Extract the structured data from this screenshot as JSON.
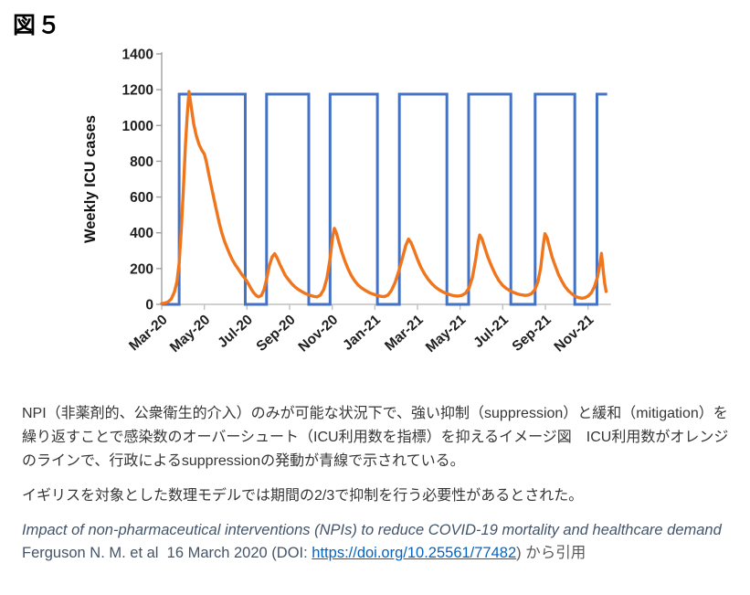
{
  "figure_label": "図５",
  "chart_data": {
    "type": "line",
    "title": "",
    "xlabel": "",
    "ylabel": "Weekly ICU cases",
    "ylim": [
      0,
      1400
    ],
    "y_tick_step": 200,
    "x_tick_labels": [
      "Mar-20",
      "May-20",
      "Jul-20",
      "Sep-20",
      "Nov-20",
      "Jan-21",
      "Mar-21",
      "May-21",
      "Jul-21",
      "Sep-21",
      "Nov-21"
    ],
    "x_tick_months": [
      0,
      2,
      4,
      6,
      8,
      10,
      12,
      14,
      16,
      18,
      20
    ],
    "plot_end_month": 20.9,
    "grid": false,
    "legend": "none",
    "y_axis_color": "#A0A0A0",
    "x_axis_color": "#C0C0C0",
    "tick_label_color": "#1F1F1F",
    "series": [
      {
        "name": "suppression-trigger",
        "description_visible": "行政によるsuppressionの発動（青線）",
        "color": "#4472C4",
        "width": 3,
        "type": "step",
        "on_level": 1175,
        "off_level": 0,
        "on_intervals_months": [
          [
            0.82,
            3.92
          ],
          [
            4.92,
            6.9
          ],
          [
            7.9,
            10.12
          ],
          [
            11.15,
            13.38
          ],
          [
            14.4,
            16.38
          ],
          [
            17.52,
            19.38
          ],
          [
            20.42,
            20.9
          ]
        ]
      },
      {
        "name": "weekly-icu-cases",
        "description_visible": "ICU利用数（オレンジのライン）",
        "color": "#F0761E",
        "width": 3.4,
        "type": "line",
        "points": [
          [
            0,
            4
          ],
          [
            0.15,
            7
          ],
          [
            0.3,
            14
          ],
          [
            0.45,
            30
          ],
          [
            0.6,
            70
          ],
          [
            0.72,
            130
          ],
          [
            0.82,
            230
          ],
          [
            0.92,
            420
          ],
          [
            1.02,
            650
          ],
          [
            1.12,
            900
          ],
          [
            1.2,
            1060
          ],
          [
            1.28,
            1190
          ],
          [
            1.38,
            1110
          ],
          [
            1.5,
            1010
          ],
          [
            1.62,
            945
          ],
          [
            1.75,
            895
          ],
          [
            1.88,
            862
          ],
          [
            2.0,
            840
          ],
          [
            2.1,
            795
          ],
          [
            2.2,
            735
          ],
          [
            2.32,
            665
          ],
          [
            2.45,
            590
          ],
          [
            2.58,
            520
          ],
          [
            2.7,
            455
          ],
          [
            2.82,
            400
          ],
          [
            2.95,
            352
          ],
          [
            3.08,
            312
          ],
          [
            3.2,
            278
          ],
          [
            3.32,
            248
          ],
          [
            3.45,
            222
          ],
          [
            3.58,
            200
          ],
          [
            3.7,
            178
          ],
          [
            3.82,
            158
          ],
          [
            3.95,
            138
          ],
          [
            4.08,
            112
          ],
          [
            4.2,
            86
          ],
          [
            4.32,
            64
          ],
          [
            4.45,
            48
          ],
          [
            4.55,
            42
          ],
          [
            4.68,
            50
          ],
          [
            4.8,
            82
          ],
          [
            4.92,
            140
          ],
          [
            5.05,
            215
          ],
          [
            5.18,
            265
          ],
          [
            5.3,
            283
          ],
          [
            5.42,
            258
          ],
          [
            5.55,
            222
          ],
          [
            5.68,
            190
          ],
          [
            5.8,
            162
          ],
          [
            5.95,
            138
          ],
          [
            6.1,
            116
          ],
          [
            6.25,
            98
          ],
          [
            6.4,
            84
          ],
          [
            6.55,
            73
          ],
          [
            6.7,
            63
          ],
          [
            6.85,
            55
          ],
          [
            7.0,
            49
          ],
          [
            7.15,
            44
          ],
          [
            7.3,
            42
          ],
          [
            7.45,
            52
          ],
          [
            7.6,
            82
          ],
          [
            7.75,
            145
          ],
          [
            7.9,
            255
          ],
          [
            8.02,
            375
          ],
          [
            8.1,
            425
          ],
          [
            8.2,
            398
          ],
          [
            8.32,
            345
          ],
          [
            8.45,
            292
          ],
          [
            8.6,
            240
          ],
          [
            8.75,
            196
          ],
          [
            8.9,
            160
          ],
          [
            9.05,
            132
          ],
          [
            9.22,
            108
          ],
          [
            9.4,
            90
          ],
          [
            9.58,
            76
          ],
          [
            9.75,
            65
          ],
          [
            9.92,
            57
          ],
          [
            10.1,
            50
          ],
          [
            10.28,
            45
          ],
          [
            10.45,
            43
          ],
          [
            10.62,
            52
          ],
          [
            10.78,
            78
          ],
          [
            10.95,
            122
          ],
          [
            11.12,
            185
          ],
          [
            11.3,
            262
          ],
          [
            11.45,
            330
          ],
          [
            11.58,
            365
          ],
          [
            11.7,
            345
          ],
          [
            11.85,
            300
          ],
          [
            12.0,
            252
          ],
          [
            12.15,
            210
          ],
          [
            12.32,
            172
          ],
          [
            12.5,
            140
          ],
          [
            12.68,
            115
          ],
          [
            12.85,
            96
          ],
          [
            13.02,
            81
          ],
          [
            13.2,
            69
          ],
          [
            13.38,
            60
          ],
          [
            13.55,
            53
          ],
          [
            13.72,
            48
          ],
          [
            13.9,
            46
          ],
          [
            14.08,
            50
          ],
          [
            14.25,
            62
          ],
          [
            14.42,
            92
          ],
          [
            14.58,
            152
          ],
          [
            14.72,
            245
          ],
          [
            14.85,
            350
          ],
          [
            14.92,
            388
          ],
          [
            15.02,
            368
          ],
          [
            15.15,
            320
          ],
          [
            15.3,
            265
          ],
          [
            15.48,
            212
          ],
          [
            15.65,
            168
          ],
          [
            15.82,
            133
          ],
          [
            16.0,
            106
          ],
          [
            16.18,
            88
          ],
          [
            16.35,
            76
          ],
          [
            16.52,
            66
          ],
          [
            16.7,
            58
          ],
          [
            16.88,
            53
          ],
          [
            17.05,
            50
          ],
          [
            17.2,
            52
          ],
          [
            17.35,
            60
          ],
          [
            17.5,
            80
          ],
          [
            17.65,
            125
          ],
          [
            17.78,
            205
          ],
          [
            17.9,
            330
          ],
          [
            17.98,
            395
          ],
          [
            18.08,
            372
          ],
          [
            18.2,
            315
          ],
          [
            18.32,
            262
          ],
          [
            18.48,
            210
          ],
          [
            18.62,
            165
          ],
          [
            18.78,
            128
          ],
          [
            18.92,
            99
          ],
          [
            19.08,
            76
          ],
          [
            19.25,
            58
          ],
          [
            19.4,
            45
          ],
          [
            19.55,
            38
          ],
          [
            19.7,
            34
          ],
          [
            19.85,
            37
          ],
          [
            20.0,
            46
          ],
          [
            20.15,
            64
          ],
          [
            20.3,
            98
          ],
          [
            20.45,
            155
          ],
          [
            20.57,
            235
          ],
          [
            20.63,
            285
          ],
          [
            20.7,
            205
          ],
          [
            20.78,
            118
          ],
          [
            20.85,
            72
          ]
        ]
      }
    ]
  },
  "description": {
    "paragraph1": "NPI（非薬剤的、公衆衛生的介入）のみが可能な状況下で、強い抑制（suppression）と緩和（mitigation）を繰り返すことで感染数のオーバーシュート（ICU利用数を指標）を抑えるイメージ図　ICU利用数がオレンジのラインで、行政によるsuppressionの発動が青線で示されている。",
    "paragraph2": "イギリスを対象とした数理モデルでは期間の2/3で抑制を行う必要性があるとされた。"
  },
  "citation": {
    "title_italic": "Impact of non-pharmaceutical interventions (NPIs) to reduce COVID-19 mortality and healthcare demand",
    "authors_date": "　Ferguson N. M. et al  16 March 2020 (DOI: ",
    "link_text": "https://doi.org/10.25561/77482",
    "suffix": ") から引用",
    "text_color": "#44546A",
    "suffix_color": "#595959",
    "link_color": "#0563C1"
  }
}
